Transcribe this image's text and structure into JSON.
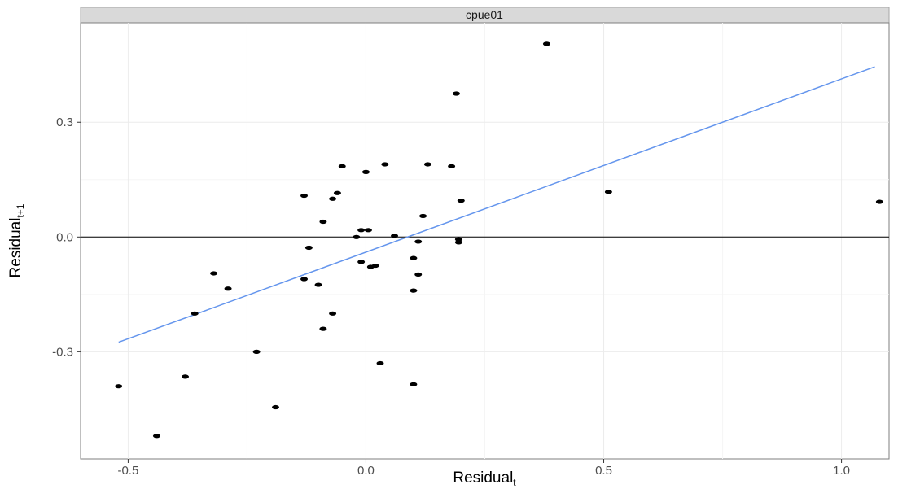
{
  "chart_data": {
    "type": "scatter",
    "panel_title": "cpue01",
    "xlabel": {
      "main": "Residual",
      "sub": "t"
    },
    "ylabel": {
      "main": "Residual",
      "sub": "t+1"
    },
    "xlim": [
      -0.6,
      1.1
    ],
    "ylim": [
      -0.58,
      0.56
    ],
    "x_ticks": [
      -0.5,
      0.0,
      0.5,
      1.0
    ],
    "x_tick_labels": [
      "-0.5",
      "0.0",
      "0.5",
      "1.0"
    ],
    "y_ticks": [
      -0.3,
      0.0,
      0.3
    ],
    "y_tick_labels": [
      "-0.3",
      "0.0",
      "0.3"
    ],
    "grid": true,
    "zero_line": 0.0,
    "regression_line": {
      "x": [
        -0.52,
        1.07
      ],
      "y": [
        -0.275,
        0.445
      ],
      "color": "#6495ED"
    },
    "points": [
      {
        "x": 0.38,
        "y": 0.505
      },
      {
        "x": 0.19,
        "y": 0.375
      },
      {
        "x": -0.05,
        "y": 0.185
      },
      {
        "x": 0.0,
        "y": 0.17
      },
      {
        "x": 0.04,
        "y": 0.19
      },
      {
        "x": 0.13,
        "y": 0.19
      },
      {
        "x": 0.18,
        "y": 0.185
      },
      {
        "x": -0.13,
        "y": 0.108
      },
      {
        "x": -0.06,
        "y": 0.115
      },
      {
        "x": -0.07,
        "y": 0.1
      },
      {
        "x": 0.2,
        "y": 0.095
      },
      {
        "x": 0.12,
        "y": 0.055
      },
      {
        "x": -0.09,
        "y": 0.04
      },
      {
        "x": -0.01,
        "y": 0.018
      },
      {
        "x": 0.005,
        "y": 0.018
      },
      {
        "x": -0.02,
        "y": 0.0
      },
      {
        "x": 0.06,
        "y": 0.003
      },
      {
        "x": 0.11,
        "y": -0.012
      },
      {
        "x": 0.195,
        "y": -0.006
      },
      {
        "x": 0.195,
        "y": -0.014
      },
      {
        "x": -0.12,
        "y": -0.028
      },
      {
        "x": 0.1,
        "y": -0.055
      },
      {
        "x": -0.01,
        "y": -0.065
      },
      {
        "x": 0.01,
        "y": -0.078
      },
      {
        "x": 0.02,
        "y": -0.075
      },
      {
        "x": 0.11,
        "y": -0.098
      },
      {
        "x": -0.32,
        "y": -0.095
      },
      {
        "x": -0.13,
        "y": -0.11
      },
      {
        "x": -0.1,
        "y": -0.125
      },
      {
        "x": -0.29,
        "y": -0.135
      },
      {
        "x": 0.1,
        "y": -0.14
      },
      {
        "x": -0.36,
        "y": -0.2
      },
      {
        "x": -0.07,
        "y": -0.2
      },
      {
        "x": -0.09,
        "y": -0.24
      },
      {
        "x": -0.23,
        "y": -0.3
      },
      {
        "x": 0.03,
        "y": -0.33
      },
      {
        "x": -0.38,
        "y": -0.365
      },
      {
        "x": 0.1,
        "y": -0.385
      },
      {
        "x": -0.52,
        "y": -0.39
      },
      {
        "x": -0.19,
        "y": -0.445
      },
      {
        "x": -0.44,
        "y": -0.52
      },
      {
        "x": 0.51,
        "y": 0.118
      },
      {
        "x": 1.08,
        "y": 0.092
      }
    ]
  }
}
